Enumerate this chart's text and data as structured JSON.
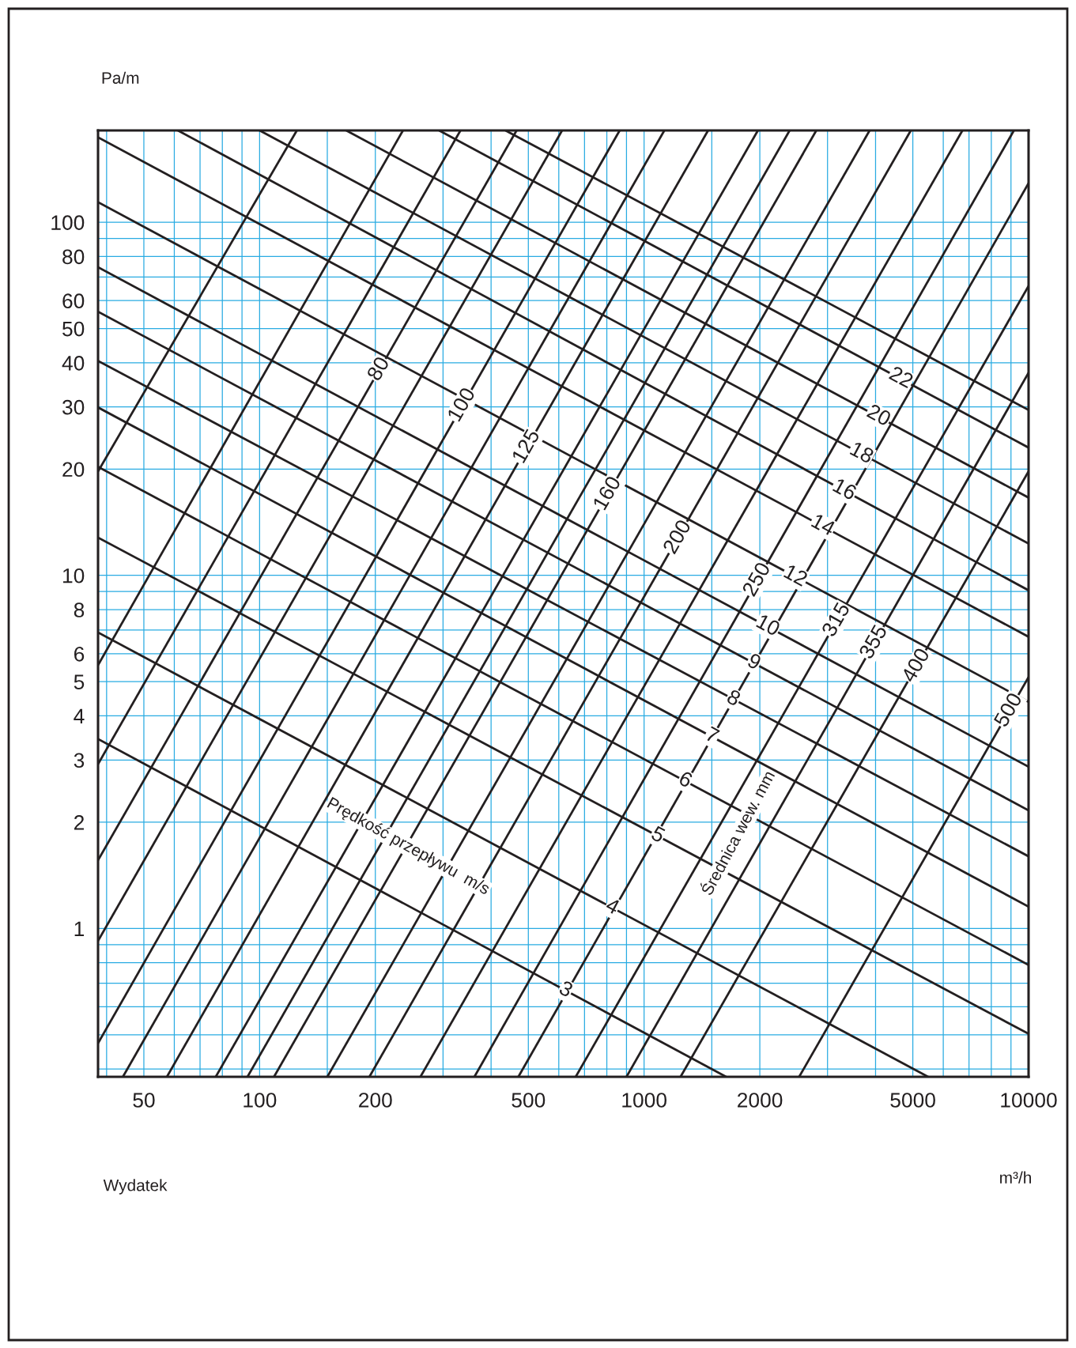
{
  "chart_data": {
    "type": "line",
    "xlabel": "Wydatek",
    "ylabel": "Pa/m",
    "log": "xy",
    "grid": true,
    "xlim": [
      38,
      10000
    ],
    "ylim": [
      0.38,
      182
    ],
    "xticks": [
      50,
      100,
      200,
      500,
      1000,
      2000,
      5000,
      10000
    ],
    "yticks": [
      1,
      2,
      3,
      4,
      5,
      6,
      8,
      10,
      20,
      30,
      40,
      50,
      60,
      80,
      100
    ],
    "series": [
      {
        "color": "#231f20",
        "x": [
          38,
          125
        ],
        "values": [
          19.7,
          182
        ]
      },
      {
        "color": "#231f20",
        "x": [
          38,
          236
        ],
        "values": [
          5.57,
          182
        ]
      },
      {
        "color": "#231f20",
        "x": [
          38,
          333
        ],
        "values": [
          2.92,
          182
        ]
      },
      {
        "color": "#231f20",
        "x": [
          38,
          466
        ],
        "values": [
          1.56,
          182
        ]
      },
      {
        "color": "#231f20",
        "x": [
          38,
          612
        ],
        "values": [
          0.922,
          182
        ]
      },
      {
        "color": "#231f20",
        "x": [
          38,
          864
        ],
        "values": [
          0.473,
          182
        ]
      },
      {
        "color": "#231f20",
        "x": [
          44.1,
          1129
        ],
        "values": [
          0.38,
          182
        ]
      },
      {
        "color": "#231f20",
        "x": [
          57.4,
          1467
        ],
        "values": [
          0.38,
          182
        ]
      },
      {
        "color": "#231f20",
        "x": [
          76.9,
          1977
        ],
        "values": [
          0.38,
          182
        ]
      },
      {
        "color": "#231f20",
        "x": [
          93.0,
          2391
        ],
        "values": [
          0.38,
          182
        ]
      },
      {
        "color": "#231f20",
        "x": [
          109,
          2805
        ],
        "values": [
          0.38,
          182
        ]
      },
      {
        "color": "#231f20",
        "x": [
          150,
          3860
        ],
        "values": [
          0.38,
          182
        ]
      },
      {
        "color": "#231f20",
        "x": [
          193,
          4940
        ],
        "values": [
          0.38,
          182
        ]
      },
      {
        "color": "#231f20",
        "x": [
          262,
          6730
        ],
        "values": [
          0.38,
          182
        ]
      },
      {
        "color": "#231f20",
        "x": [
          362,
          9160
        ],
        "values": [
          0.38,
          182
        ]
      },
      {
        "color": "#231f20",
        "x": [
          471,
          10000
        ],
        "values": [
          0.38,
          129
        ]
      },
      {
        "color": "#231f20",
        "x": [
          664,
          10000
        ],
        "values": [
          0.38,
          66.0
        ]
      },
      {
        "color": "#231f20",
        "x": [
          900,
          10000
        ],
        "values": [
          0.38,
          37.5
        ]
      },
      {
        "color": "#231f20",
        "x": [
          1244,
          10000
        ],
        "values": [
          0.38,
          19.7
        ]
      },
      {
        "color": "#231f20",
        "x": [
          2531,
          10000
        ],
        "values": [
          0.38,
          5.15
        ]
      },
      {
        "color": "#231f20",
        "x": [
          38,
          1635
        ],
        "values": [
          3.44,
          0.38
        ]
      },
      {
        "color": "#231f20",
        "x": [
          38,
          5480
        ],
        "values": [
          6.89,
          0.38
        ]
      },
      {
        "color": "#231f20",
        "x": [
          38,
          10000
        ],
        "values": [
          12.8,
          0.503
        ]
      },
      {
        "color": "#231f20",
        "x": [
          38,
          10000
        ],
        "values": [
          20.3,
          0.788
        ]
      },
      {
        "color": "#231f20",
        "x": [
          38,
          10000
        ],
        "values": [
          29.9,
          1.153
        ]
      },
      {
        "color": "#231f20",
        "x": [
          38,
          10000
        ],
        "values": [
          40.5,
          1.6
        ]
      },
      {
        "color": "#231f20",
        "x": [
          38,
          10000
        ],
        "values": [
          55.8,
          2.16
        ]
      },
      {
        "color": "#231f20",
        "x": [
          38,
          10000
        ],
        "values": [
          74.6,
          2.87
        ]
      },
      {
        "color": "#231f20",
        "x": [
          38,
          10000
        ],
        "values": [
          114,
          4.38
        ]
      },
      {
        "color": "#231f20",
        "x": [
          38,
          10000
        ],
        "values": [
          174,
          6.7
        ]
      },
      {
        "color": "#231f20",
        "x": [
          61.3,
          10000
        ],
        "values": [
          182,
          9.07
        ]
      },
      {
        "color": "#231f20",
        "x": [
          100,
          10000
        ],
        "values": [
          182,
          12.3
        ]
      },
      {
        "color": "#231f20",
        "x": [
          168,
          10000
        ],
        "values": [
          182,
          16.6
        ]
      },
      {
        "color": "#231f20",
        "x": [
          293,
          10000
        ],
        "values": [
          182,
          23.0
        ]
      },
      {
        "color": "#231f20",
        "x": [
          436,
          10000
        ],
        "values": [
          182,
          29.4
        ]
      }
    ],
    "annotations": [
      "Prędkość przepływu  m/s",
      "Średnica wew. mm",
      "m³/h",
      {
        "text": "80",
        "x": 205,
        "y": 38.3
      },
      {
        "text": "100",
        "x": 337,
        "y": 30.3
      },
      {
        "text": "125",
        "x": 496,
        "y": 23.1
      },
      {
        "text": "160",
        "x": 806,
        "y": 17.0
      },
      {
        "text": "200",
        "x": 1227,
        "y": 12.8
      },
      {
        "text": "250",
        "x": 1974,
        "y": 9.7
      },
      {
        "text": "315",
        "x": 3178,
        "y": 7.46
      },
      {
        "text": "355",
        "x": 3973,
        "y": 6.45
      },
      {
        "text": "400",
        "x": 5123,
        "y": 5.54
      },
      {
        "text": "500",
        "x": 8913,
        "y": 4.14
      },
      {
        "text": "3",
        "x": 624,
        "y": 0.668
      },
      {
        "text": "4",
        "x": 825,
        "y": 1.147
      },
      {
        "text": "5",
        "x": 1083,
        "y": 1.83
      },
      {
        "text": "6",
        "x": 1277,
        "y": 2.62
      },
      {
        "text": "7",
        "x": 1498,
        "y": 3.5
      },
      {
        "text": "8",
        "x": 1703,
        "y": 4.46
      },
      {
        "text": "9",
        "x": 1927,
        "y": 5.65
      },
      {
        "text": "10",
        "x": 2092,
        "y": 7.17
      },
      {
        "text": "12",
        "x": 2467,
        "y": 9.92
      },
      {
        "text": "14",
        "x": 2909,
        "y": 13.8
      },
      {
        "text": "16",
        "x": 3308,
        "y": 17.4
      },
      {
        "text": "18",
        "x": 3667,
        "y": 22.1
      },
      {
        "text": "20",
        "x": 4064,
        "y": 28.2
      },
      {
        "text": "22",
        "x": 4645,
        "y": 36.1
      }
    ]
  }
}
